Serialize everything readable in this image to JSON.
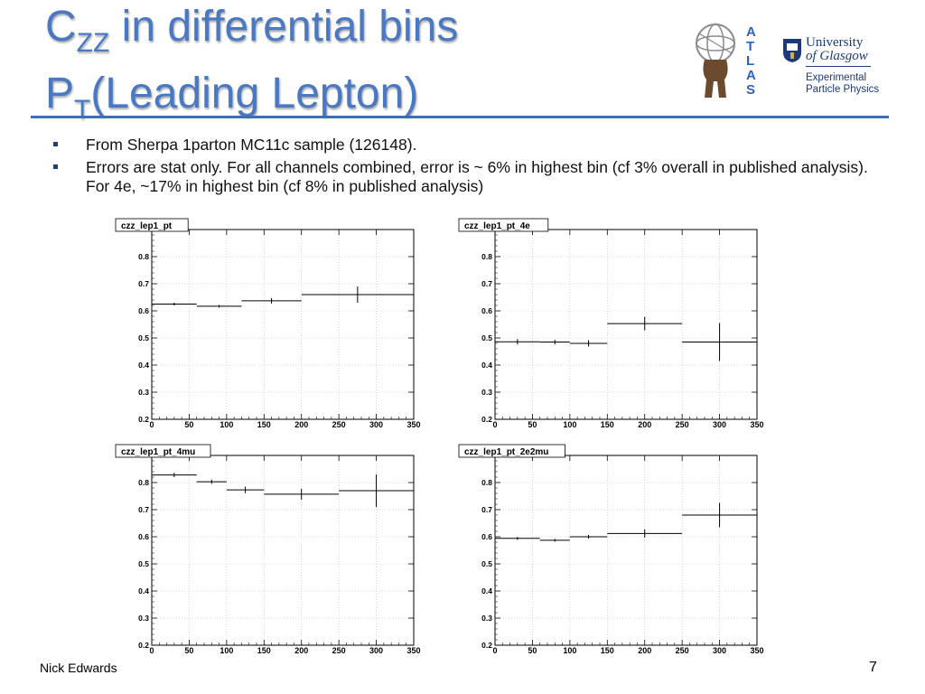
{
  "slide": {
    "title_line1_main": "C",
    "title_line1_sub": "ZZ",
    "title_line1_rest": " in differential bins",
    "title_line2_main": "P",
    "title_line2_sub": "T",
    "title_line2_rest": "(Leading Lepton)",
    "accent_color": "#4a78c2",
    "rule_color": "#3e6fb3"
  },
  "logos": {
    "atlas_letters": [
      "A",
      "T",
      "L",
      "A",
      "S"
    ],
    "glasgow_line1": "University",
    "glasgow_line2": "of Glasgow",
    "glasgow_dept_line1": "Experimental",
    "glasgow_dept_line2": "Particle Physics"
  },
  "bullets": [
    "From Sherpa 1parton MC11c sample (126148).",
    "Errors are stat only.  For all channels combined, error is ~ 6% in highest bin (cf 3% overall in published analysis). For 4e, ~17% in highest bin (cf 8% in published analysis)"
  ],
  "footer": {
    "author": "Nick Edwards",
    "page_number": "7"
  },
  "chart_data": [
    {
      "type": "histogram",
      "title": "czz_lep1_pt",
      "xlim": [
        0,
        350
      ],
      "ylim": [
        0.2,
        0.9
      ],
      "xticks": [
        0,
        50,
        100,
        150,
        200,
        250,
        300,
        350
      ],
      "yticks": [
        0.2,
        0.3,
        0.4,
        0.5,
        0.6,
        0.7,
        0.8
      ],
      "bins": [
        {
          "lo": 0,
          "hi": 60,
          "value": 0.625,
          "error": 0.005
        },
        {
          "lo": 60,
          "hi": 120,
          "value": 0.617,
          "error": 0.005
        },
        {
          "lo": 120,
          "hi": 200,
          "value": 0.637,
          "error": 0.01
        },
        {
          "lo": 200,
          "hi": 350,
          "value": 0.66,
          "error": 0.03
        }
      ]
    },
    {
      "type": "histogram",
      "title": "czz_lep1_pt_4e",
      "xlim": [
        0,
        350
      ],
      "ylim": [
        0.2,
        0.9
      ],
      "xticks": [
        0,
        50,
        100,
        150,
        200,
        250,
        300,
        350
      ],
      "yticks": [
        0.2,
        0.3,
        0.4,
        0.5,
        0.6,
        0.7,
        0.8
      ],
      "bins": [
        {
          "lo": 0,
          "hi": 60,
          "value": 0.486,
          "error": 0.01
        },
        {
          "lo": 60,
          "hi": 100,
          "value": 0.485,
          "error": 0.008
        },
        {
          "lo": 100,
          "hi": 150,
          "value": 0.48,
          "error": 0.012
        },
        {
          "lo": 150,
          "hi": 250,
          "value": 0.553,
          "error": 0.025
        },
        {
          "lo": 250,
          "hi": 350,
          "value": 0.485,
          "error": 0.07
        }
      ]
    },
    {
      "type": "histogram",
      "title": "czz_lep1_pt_4mu",
      "xlim": [
        0,
        350
      ],
      "ylim": [
        0.2,
        0.9
      ],
      "xticks": [
        0,
        50,
        100,
        150,
        200,
        250,
        300,
        350
      ],
      "yticks": [
        0.2,
        0.3,
        0.4,
        0.5,
        0.6,
        0.7,
        0.8
      ],
      "bins": [
        {
          "lo": 0,
          "hi": 60,
          "value": 0.828,
          "error": 0.008
        },
        {
          "lo": 60,
          "hi": 100,
          "value": 0.803,
          "error": 0.008
        },
        {
          "lo": 100,
          "hi": 150,
          "value": 0.773,
          "error": 0.012
        },
        {
          "lo": 150,
          "hi": 250,
          "value": 0.757,
          "error": 0.02
        },
        {
          "lo": 250,
          "hi": 350,
          "value": 0.77,
          "error": 0.06
        }
      ]
    },
    {
      "type": "histogram",
      "title": "czz_lep1_pt_2e2mu",
      "xlim": [
        0,
        350
      ],
      "ylim": [
        0.2,
        0.9
      ],
      "xticks": [
        0,
        50,
        100,
        150,
        200,
        250,
        300,
        350
      ],
      "yticks": [
        0.2,
        0.3,
        0.4,
        0.5,
        0.6,
        0.7,
        0.8
      ],
      "bins": [
        {
          "lo": 0,
          "hi": 60,
          "value": 0.594,
          "error": 0.005
        },
        {
          "lo": 60,
          "hi": 100,
          "value": 0.587,
          "error": 0.005
        },
        {
          "lo": 100,
          "hi": 150,
          "value": 0.6,
          "error": 0.007
        },
        {
          "lo": 150,
          "hi": 250,
          "value": 0.612,
          "error": 0.015
        },
        {
          "lo": 250,
          "hi": 350,
          "value": 0.68,
          "error": 0.045
        }
      ]
    }
  ]
}
